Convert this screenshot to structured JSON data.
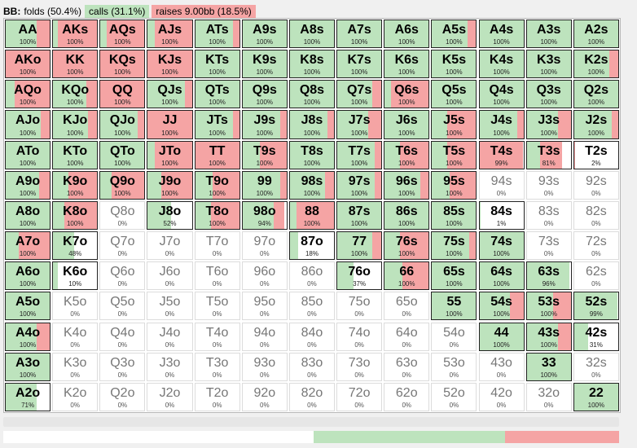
{
  "header": {
    "label": "BB:",
    "folds": "folds (50.4%)",
    "calls": "calls (31.1%)",
    "raises": "raises 9.00bb (18.5%)"
  },
  "colors": {
    "call": "#bde3bd",
    "raise": "#f5a4a4",
    "fold": "#ffffff"
  },
  "summary": {
    "fold": 0.504,
    "call": 0.311,
    "raise": 0.185
  },
  "ranks": [
    "A",
    "K",
    "Q",
    "J",
    "T",
    "9",
    "8",
    "7",
    "6",
    "5",
    "4",
    "3",
    "2"
  ],
  "rows": [
    [
      [
        "AA",
        "100%",
        0.7,
        0.3
      ],
      [
        "AKs",
        "100%",
        0.1,
        0.9
      ],
      [
        "AQs",
        "100%",
        0.15,
        0.85
      ],
      [
        "AJs",
        "100%",
        0.15,
        0.85
      ],
      [
        "ATs",
        "100%",
        0.85,
        0.15
      ],
      [
        "A9s",
        "100%",
        1,
        0
      ],
      [
        "A8s",
        "100%",
        1,
        0
      ],
      [
        "A7s",
        "100%",
        1,
        0
      ],
      [
        "A6s",
        "100%",
        1,
        0
      ],
      [
        "A5s",
        "100%",
        0.8,
        0.2
      ],
      [
        "A4s",
        "100%",
        1,
        0
      ],
      [
        "A3s",
        "100%",
        1,
        0
      ],
      [
        "A2s",
        "100%",
        1,
        0
      ]
    ],
    [
      [
        "AKo",
        "100%",
        0,
        1
      ],
      [
        "KK",
        "100%",
        0,
        1
      ],
      [
        "KQs",
        "100%",
        0,
        1
      ],
      [
        "KJs",
        "100%",
        0,
        1
      ],
      [
        "KTs",
        "100%",
        1,
        0
      ],
      [
        "K9s",
        "100%",
        1,
        0
      ],
      [
        "K8s",
        "100%",
        1,
        0
      ],
      [
        "K7s",
        "100%",
        1,
        0
      ],
      [
        "K6s",
        "100%",
        1,
        0
      ],
      [
        "K5s",
        "100%",
        1,
        0
      ],
      [
        "K4s",
        "100%",
        1,
        0
      ],
      [
        "K3s",
        "100%",
        1,
        0
      ],
      [
        "K2s",
        "100%",
        0.8,
        0.2
      ]
    ],
    [
      [
        "AQo",
        "100%",
        0.2,
        0.8
      ],
      [
        "KQo",
        "100%",
        0.75,
        0.25
      ],
      [
        "QQ",
        "100%",
        0,
        1
      ],
      [
        "QJs",
        "100%",
        0.85,
        0.15
      ],
      [
        "QTs",
        "100%",
        1,
        0
      ],
      [
        "Q9s",
        "100%",
        1,
        0
      ],
      [
        "Q8s",
        "100%",
        1,
        0
      ],
      [
        "Q7s",
        "100%",
        0.8,
        0.2
      ],
      [
        "Q6s",
        "100%",
        0.15,
        0.85
      ],
      [
        "Q5s",
        "100%",
        1,
        0
      ],
      [
        "Q4s",
        "100%",
        1,
        0
      ],
      [
        "Q3s",
        "100%",
        1,
        0
      ],
      [
        "Q2s",
        "100%",
        1,
        0
      ]
    ],
    [
      [
        "AJo",
        "100%",
        0.8,
        0.2
      ],
      [
        "KJo",
        "100%",
        0.8,
        0.2
      ],
      [
        "QJo",
        "100%",
        0.85,
        0.15
      ],
      [
        "JJ",
        "100%",
        0,
        1
      ],
      [
        "JTs",
        "100%",
        0.85,
        0.15
      ],
      [
        "J9s",
        "100%",
        0.85,
        0.15
      ],
      [
        "J8s",
        "100%",
        0.85,
        0.15
      ],
      [
        "J7s",
        "100%",
        0.7,
        0.3
      ],
      [
        "J6s",
        "100%",
        1,
        0
      ],
      [
        "J5s",
        "100%",
        0.35,
        0.65
      ],
      [
        "J4s",
        "100%",
        0.85,
        0.15
      ],
      [
        "J3s",
        "100%",
        0.7,
        0.3
      ],
      [
        "J2s",
        "100%",
        0.85,
        0.15
      ]
    ],
    [
      [
        "ATo",
        "100%",
        1,
        0
      ],
      [
        "KTo",
        "100%",
        1,
        0
      ],
      [
        "QTo",
        "100%",
        1,
        0
      ],
      [
        "JTo",
        "100%",
        0.15,
        0.85
      ],
      [
        "TT",
        "100%",
        0,
        1
      ],
      [
        "T9s",
        "100%",
        0.4,
        0.6
      ],
      [
        "T8s",
        "100%",
        1,
        0
      ],
      [
        "T7s",
        "100%",
        0.85,
        0.15
      ],
      [
        "T6s",
        "100%",
        0.35,
        0.65
      ],
      [
        "T5s",
        "100%",
        0.35,
        0.65
      ],
      [
        "T4s",
        "99%",
        0,
        0.99
      ],
      [
        "T3s",
        "81%",
        0.3,
        0.51
      ],
      [
        "T2s",
        "2%",
        0,
        0.02
      ]
    ],
    [
      [
        "A9o",
        "100%",
        0.75,
        0.25
      ],
      [
        "K9o",
        "100%",
        0.35,
        0.65
      ],
      [
        "Q9o",
        "100%",
        0.25,
        0.75
      ],
      [
        "J9o",
        "100%",
        0.3,
        0.7
      ],
      [
        "T9o",
        "100%",
        0.4,
        0.6
      ],
      [
        "99",
        "100%",
        0.85,
        0.15
      ],
      [
        "98s",
        "100%",
        0.8,
        0.2
      ],
      [
        "97s",
        "100%",
        0.85,
        0.15
      ],
      [
        "96s",
        "100%",
        0.8,
        0.2
      ],
      [
        "95s",
        "100%",
        0.4,
        0.6
      ],
      [
        "94s",
        "0%",
        0,
        0
      ],
      [
        "93s",
        "0%",
        0,
        0
      ],
      [
        "92s",
        "0%",
        0,
        0
      ]
    ],
    [
      [
        "A8o",
        "100%",
        1,
        0
      ],
      [
        "K8o",
        "100%",
        0.25,
        0.75
      ],
      [
        "Q8o",
        "0%",
        0,
        0
      ],
      [
        "J8o",
        "52%",
        0.52,
        0
      ],
      [
        "T8o",
        "100%",
        0.35,
        0.65
      ],
      [
        "98o",
        "94%",
        0.7,
        0.24
      ],
      [
        "88",
        "100%",
        0.15,
        0.85
      ],
      [
        "87s",
        "100%",
        1,
        0
      ],
      [
        "86s",
        "100%",
        1,
        0
      ],
      [
        "85s",
        "100%",
        1,
        0
      ],
      [
        "84s",
        "1%",
        0.01,
        0
      ],
      [
        "83s",
        "0%",
        0,
        0
      ],
      [
        "82s",
        "0%",
        0,
        0
      ]
    ],
    [
      [
        "A7o",
        "100%",
        0.3,
        0.7
      ],
      [
        "K7o",
        "48%",
        0.48,
        0
      ],
      [
        "Q7o",
        "0%",
        0,
        0
      ],
      [
        "J7o",
        "0%",
        0,
        0
      ],
      [
        "T7o",
        "0%",
        0,
        0
      ],
      [
        "97o",
        "0%",
        0,
        0
      ],
      [
        "87o",
        "18%",
        0.18,
        0
      ],
      [
        "77",
        "100%",
        0.8,
        0.2
      ],
      [
        "76s",
        "100%",
        0.35,
        0.65
      ],
      [
        "75s",
        "100%",
        0.85,
        0.15
      ],
      [
        "74s",
        "100%",
        1,
        0
      ],
      [
        "73s",
        "0%",
        0,
        0
      ],
      [
        "72s",
        "0%",
        0,
        0
      ]
    ],
    [
      [
        "A6o",
        "100%",
        1,
        0
      ],
      [
        "K6o",
        "10%",
        0.1,
        0
      ],
      [
        "Q6o",
        "0%",
        0,
        0
      ],
      [
        "J6o",
        "0%",
        0,
        0
      ],
      [
        "T6o",
        "0%",
        0,
        0
      ],
      [
        "96o",
        "0%",
        0,
        0
      ],
      [
        "86o",
        "0%",
        0,
        0
      ],
      [
        "76o",
        "37%",
        0.37,
        0
      ],
      [
        "66",
        "100%",
        0.4,
        0.6
      ],
      [
        "65s",
        "100%",
        1,
        0
      ],
      [
        "64s",
        "100%",
        1,
        0
      ],
      [
        "63s",
        "96%",
        0.96,
        0
      ],
      [
        "62s",
        "0%",
        0,
        0
      ]
    ],
    [
      [
        "A5o",
        "100%",
        1,
        0
      ],
      [
        "K5o",
        "0%",
        0,
        0
      ],
      [
        "Q5o",
        "0%",
        0,
        0
      ],
      [
        "J5o",
        "0%",
        0,
        0
      ],
      [
        "T5o",
        "0%",
        0,
        0
      ],
      [
        "95o",
        "0%",
        0,
        0
      ],
      [
        "85o",
        "0%",
        0,
        0
      ],
      [
        "75o",
        "0%",
        0,
        0
      ],
      [
        "65o",
        "0%",
        0,
        0
      ],
      [
        "55",
        "100%",
        1,
        0
      ],
      [
        "54s",
        "100%",
        0.7,
        0.3
      ],
      [
        "53s",
        "100%",
        0.6,
        0.4
      ],
      [
        "52s",
        "99%",
        0.99,
        0
      ]
    ],
    [
      [
        "A4o",
        "100%",
        0.7,
        0.3
      ],
      [
        "K4o",
        "0%",
        0,
        0
      ],
      [
        "Q4o",
        "0%",
        0,
        0
      ],
      [
        "J4o",
        "0%",
        0,
        0
      ],
      [
        "T4o",
        "0%",
        0,
        0
      ],
      [
        "94o",
        "0%",
        0,
        0
      ],
      [
        "84o",
        "0%",
        0,
        0
      ],
      [
        "74o",
        "0%",
        0,
        0
      ],
      [
        "64o",
        "0%",
        0,
        0
      ],
      [
        "54o",
        "0%",
        0,
        0
      ],
      [
        "44",
        "100%",
        1,
        0
      ],
      [
        "43s",
        "100%",
        0.7,
        0.3
      ],
      [
        "42s",
        "31%",
        0.31,
        0
      ]
    ],
    [
      [
        "A3o",
        "100%",
        1,
        0
      ],
      [
        "K3o",
        "0%",
        0,
        0
      ],
      [
        "Q3o",
        "0%",
        0,
        0
      ],
      [
        "J3o",
        "0%",
        0,
        0
      ],
      [
        "T3o",
        "0%",
        0,
        0
      ],
      [
        "93o",
        "0%",
        0,
        0
      ],
      [
        "83o",
        "0%",
        0,
        0
      ],
      [
        "73o",
        "0%",
        0,
        0
      ],
      [
        "63o",
        "0%",
        0,
        0
      ],
      [
        "53o",
        "0%",
        0,
        0
      ],
      [
        "43o",
        "0%",
        0,
        0
      ],
      [
        "33",
        "100%",
        1,
        0
      ],
      [
        "32s",
        "0%",
        0,
        0
      ]
    ],
    [
      [
        "A2o",
        "71%",
        0.71,
        0
      ],
      [
        "K2o",
        "0%",
        0,
        0
      ],
      [
        "Q2o",
        "0%",
        0,
        0
      ],
      [
        "J2o",
        "0%",
        0,
        0
      ],
      [
        "T2o",
        "0%",
        0,
        0
      ],
      [
        "92o",
        "0%",
        0,
        0
      ],
      [
        "82o",
        "0%",
        0,
        0
      ],
      [
        "72o",
        "0%",
        0,
        0
      ],
      [
        "62o",
        "0%",
        0,
        0
      ],
      [
        "52o",
        "0%",
        0,
        0
      ],
      [
        "42o",
        "0%",
        0,
        0
      ],
      [
        "32o",
        "0%",
        0,
        0
      ],
      [
        "22",
        "100%",
        1,
        0
      ]
    ]
  ]
}
